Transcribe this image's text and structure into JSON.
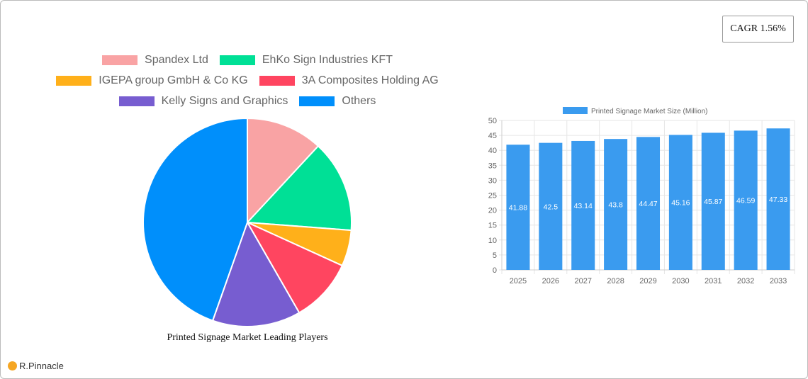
{
  "cagr_label": "CAGR 1.56%",
  "logo_text": "R.Pinnacle",
  "chart_data": [
    {
      "type": "pie",
      "title": "Printed Signage Market Leading Players",
      "legend_position": "top",
      "slices": [
        {
          "name": "Spandex Ltd",
          "value": 11.9,
          "color": "#f9a3a4"
        },
        {
          "name": "EhKo Sign Industries KFT",
          "value": 14.3,
          "color": "#00e096"
        },
        {
          "name": "IGEPA group GmbH & Co  KG",
          "value": 5.6,
          "color": "#ffb01a"
        },
        {
          "name": "3A Composites Holding AG",
          "value": 9.9,
          "color": "#ff4560"
        },
        {
          "name": "Kelly Signs and Graphics",
          "value": 13.7,
          "color": "#775dd0"
        },
        {
          "name": "Others",
          "value": 44.6,
          "color": "#008ffb"
        }
      ]
    },
    {
      "type": "bar",
      "legend": "Printed Signage Market Size (Million)",
      "color": "#3a9bef",
      "categories": [
        "2025",
        "2026",
        "2027",
        "2028",
        "2029",
        "2030",
        "2031",
        "2032",
        "2033"
      ],
      "values": [
        41.88,
        42.5,
        43.14,
        43.8,
        44.47,
        45.16,
        45.87,
        46.59,
        47.33
      ],
      "ylim": [
        0,
        50
      ],
      "yticks": [
        0,
        5,
        10,
        15,
        20,
        25,
        30,
        35,
        40,
        45,
        50
      ],
      "grid": true
    }
  ]
}
